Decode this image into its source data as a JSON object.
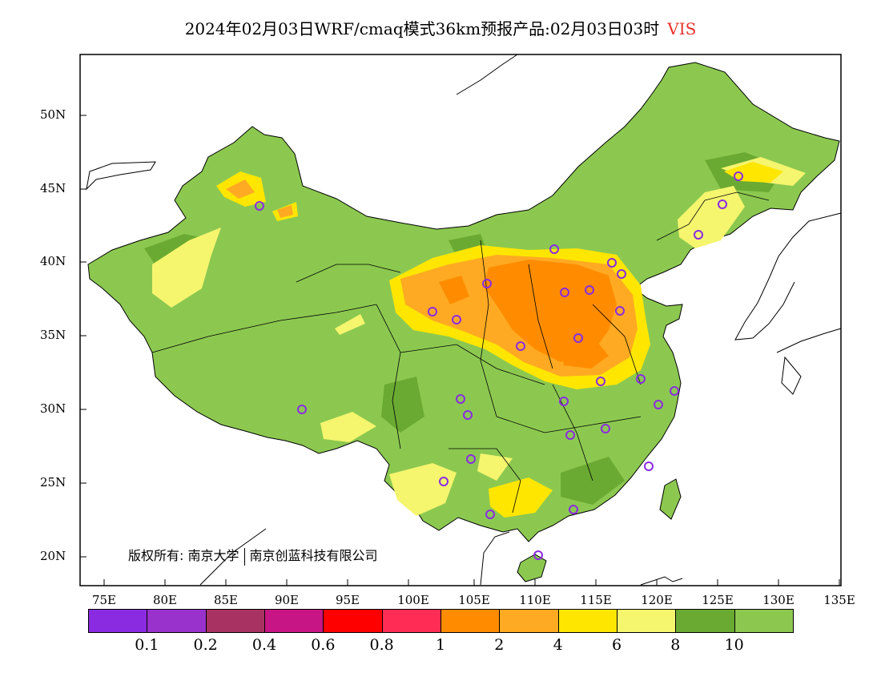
{
  "title": {
    "text": "2024年02月03日WRF/cmaq模式36km预报产品:02月03日03时",
    "variable": "VIS",
    "variable_color": "#e8302c"
  },
  "copyright": {
    "prefix": "版权所有:",
    "org1": "南京大学",
    "org2": "南京创蓝科技有限公司"
  },
  "axes": {
    "lat_labels": [
      "50N",
      "45N",
      "40N",
      "35N",
      "30N",
      "25N",
      "20N"
    ],
    "lon_labels": [
      "75E",
      "80E",
      "85E",
      "90E",
      "95E",
      "100E",
      "105E",
      "110E",
      "115E",
      "120E",
      "125E",
      "130E",
      "135E"
    ]
  },
  "colorbar": {
    "colors": [
      "#8a2be2",
      "#9932cc",
      "#a83262",
      "#c71585",
      "#ff0000",
      "#ff2d55",
      "#ff8c00",
      "#ffaa22",
      "#ffe600",
      "#f5f56e",
      "#6aaa32",
      "#8cc850"
    ],
    "labels": [
      "0.1",
      "0.2",
      "0.4",
      "0.6",
      "0.8",
      "1",
      "2",
      "4",
      "6",
      "8",
      "10"
    ]
  },
  "colors": {
    "land_base": "#8cc850",
    "land_dark": "#6aaa32",
    "light_yellow": "#f5f56e",
    "yellow": "#ffe600",
    "light_orange": "#ffaa22",
    "orange": "#ff8c00",
    "station_marker": "#8a2be2"
  }
}
